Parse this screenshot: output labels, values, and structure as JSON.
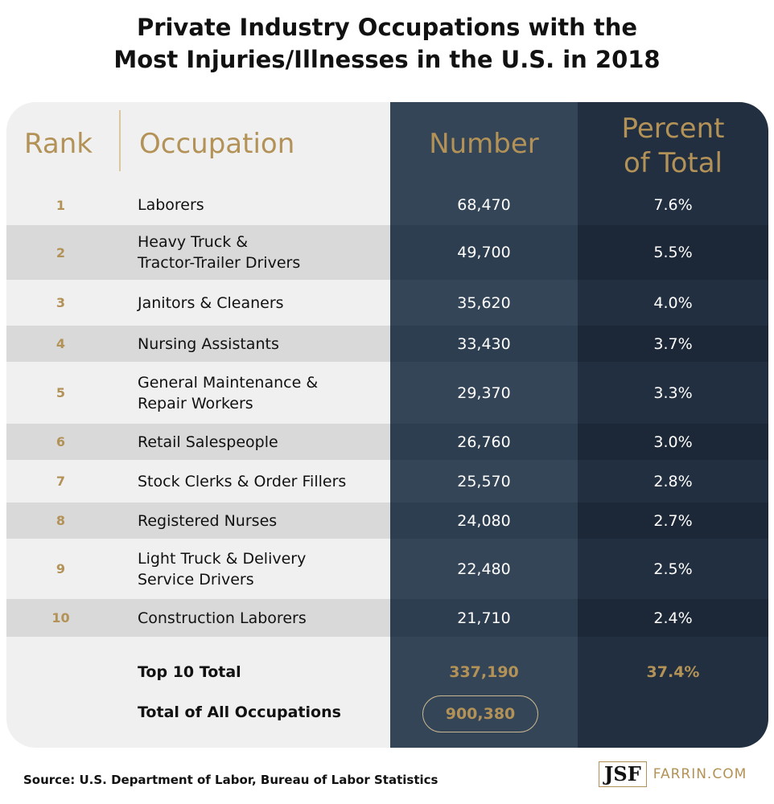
{
  "title_line1": "Private Industry Occupations with the",
  "title_line2": "Most Injuries/Illnesses in the U.S. in 2018",
  "colors": {
    "gold": "#b39257",
    "number_column": "#344558",
    "percent_column": "#222f40",
    "light_bg": "#f0f0f0",
    "stripe": "#d9d9d9"
  },
  "chart_data": {
    "type": "table",
    "headers": {
      "rank": "Rank",
      "occupation": "Occupation",
      "number": "Number",
      "percent_line1": "Percent",
      "percent_line2": "of Total"
    },
    "rows": [
      {
        "rank": "1",
        "occ1": "Laborers",
        "occ2": "",
        "number": "68,470",
        "percent": "7.6%"
      },
      {
        "rank": "2",
        "occ1": "Heavy Truck &",
        "occ2": "Tractor-Trailer Drivers",
        "number": "49,700",
        "percent": "5.5%"
      },
      {
        "rank": "3",
        "occ1": "Janitors & Cleaners",
        "occ2": "",
        "number": "35,620",
        "percent": "4.0%"
      },
      {
        "rank": "4",
        "occ1": "Nursing Assistants",
        "occ2": "",
        "number": "33,430",
        "percent": "3.7%"
      },
      {
        "rank": "5",
        "occ1": "General Maintenance &",
        "occ2": "Repair Workers",
        "number": "29,370",
        "percent": "3.3%"
      },
      {
        "rank": "6",
        "occ1": "Retail Salespeople",
        "occ2": "",
        "number": "26,760",
        "percent": "3.0%"
      },
      {
        "rank": "7",
        "occ1": "Stock Clerks & Order Fillers",
        "occ2": "",
        "number": "25,570",
        "percent": "2.8%"
      },
      {
        "rank": "8",
        "occ1": "Registered Nurses",
        "occ2": "",
        "number": "24,080",
        "percent": "2.7%"
      },
      {
        "rank": "9",
        "occ1": "Light Truck & Delivery",
        "occ2": "Service Drivers",
        "number": "22,480",
        "percent": "2.5%"
      },
      {
        "rank": "10",
        "occ1": "Construction Laborers",
        "occ2": "",
        "number": "21,710",
        "percent": "2.4%"
      }
    ],
    "totals": {
      "top10_label": "Top 10 Total",
      "top10_number": "337,190",
      "top10_percent": "37.4%",
      "all_label": "Total of All Occupations",
      "all_number": "900,380"
    }
  },
  "source": "Source: U.S. Department of Labor, Bureau of Labor Statistics",
  "logo": {
    "mark": "JSF",
    "text": "FARRIN.COM"
  }
}
